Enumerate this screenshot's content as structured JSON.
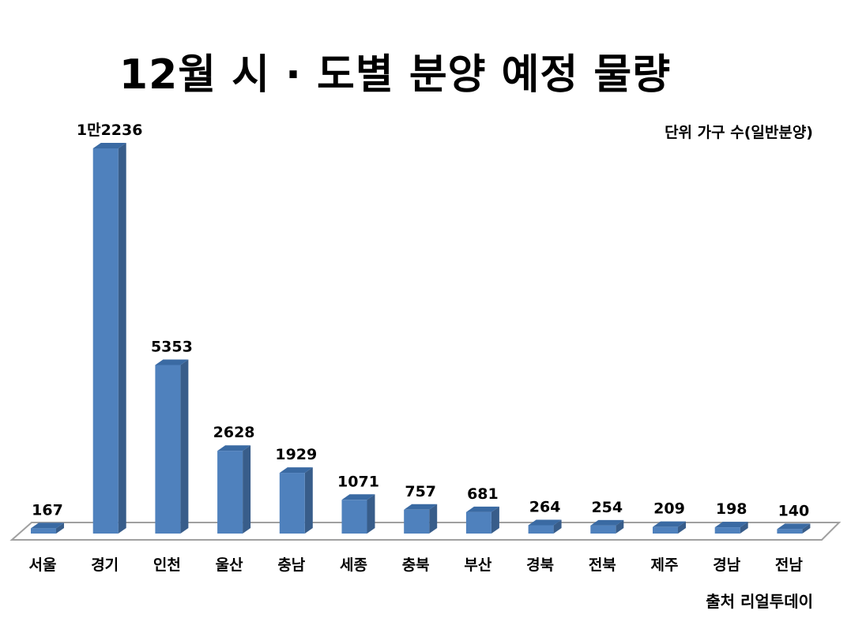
{
  "chart_data": {
    "type": "bar",
    "title": "12월 시 · 도별 분양 예정 물량",
    "unit_note": "단위 가구 수(일반분양)",
    "source": "출처 리얼투데이",
    "categories": [
      "서울",
      "경기",
      "인천",
      "울산",
      "충남",
      "세종",
      "충북",
      "부산",
      "경북",
      "전북",
      "제주",
      "경남",
      "전남"
    ],
    "values": [
      167,
      12236,
      5353,
      2628,
      1929,
      1071,
      757,
      681,
      264,
      254,
      209,
      198,
      140
    ],
    "value_labels": [
      "167",
      "1만2236",
      "5353",
      "2628",
      "1929",
      "1071",
      "757",
      "681",
      "264",
      "254",
      "209",
      "198",
      "140"
    ],
    "style": "3d-column",
    "grid": false,
    "legend": "none",
    "colors": {
      "bar_front": "#4f81bd",
      "bar_side": "#385d8a",
      "bar_top": "#3a6aa3",
      "floor": "#a0a0a0"
    }
  }
}
